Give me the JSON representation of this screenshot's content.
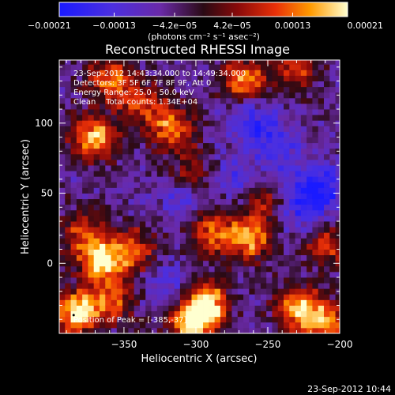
{
  "chart_data": {
    "type": "heatmap",
    "title": "Reconstructed RHESSI Image",
    "xlabel": "Heliocentric X (arcsec)",
    "ylabel": "Heliocentric Y (arcsec)",
    "xlim": [
      -395,
      -200
    ],
    "ylim": [
      -50,
      145
    ],
    "x_ticks": [
      -350,
      -300,
      -250,
      -200
    ],
    "x_tick_labels": [
      "−350",
      "−300",
      "−250",
      "−200"
    ],
    "y_ticks": [
      0,
      50,
      100
    ],
    "y_tick_labels": [
      "0",
      "50",
      "100"
    ],
    "colorbar": {
      "min": -0.00021,
      "max": 0.00021,
      "ticks": [
        -0.00021,
        -0.00013,
        -4.2e-05,
        4.2e-05,
        0.00013,
        0.00021
      ],
      "tick_labels": [
        "−0.00021",
        "−0.00013",
        "−4.2e−05",
        "4.2e−05",
        "0.00013",
        "0.00021"
      ],
      "unit_label": "(photons cm⁻² s⁻¹ asec⁻²)"
    },
    "annotations": [
      "23-Sep-2012 14:43:34.000 to 14:49:34.000",
      "Detectors: 3F 5F 6F 7F 8F 9F, Att 0",
      "Energy Range: 25.0 - 50.0 keV",
      "Clean    Total counts: 1.34E+04",
      "Position of Peak = [-385,-37]"
    ],
    "peak_position": [
      -385,
      -37
    ],
    "grid": false,
    "legend": "none",
    "hotspots": [
      {
        "x": -372,
        "y": 88,
        "amp": 0.85
      },
      {
        "x": -362,
        "y": 130,
        "amp": 0.7
      },
      {
        "x": -340,
        "y": 112,
        "amp": 0.55
      },
      {
        "x": -318,
        "y": 95,
        "amp": 0.75
      },
      {
        "x": -268,
        "y": 128,
        "amp": 0.8
      },
      {
        "x": -232,
        "y": 138,
        "amp": 0.6
      },
      {
        "x": -305,
        "y": 60,
        "amp": 0.5
      },
      {
        "x": -380,
        "y": 20,
        "amp": 0.55
      },
      {
        "x": -368,
        "y": 0,
        "amp": 1.0
      },
      {
        "x": -345,
        "y": 8,
        "amp": 0.55
      },
      {
        "x": -290,
        "y": 20,
        "amp": 0.7
      },
      {
        "x": -265,
        "y": 15,
        "amp": 0.75
      },
      {
        "x": -255,
        "y": 40,
        "amp": 0.45
      },
      {
        "x": -385,
        "y": -37,
        "amp": 1.0
      },
      {
        "x": -360,
        "y": -28,
        "amp": 0.6
      },
      {
        "x": -295,
        "y": -30,
        "amp": 1.0
      },
      {
        "x": -305,
        "y": -45,
        "amp": 0.9
      },
      {
        "x": -230,
        "y": -35,
        "amp": 0.85
      },
      {
        "x": -210,
        "y": -45,
        "amp": 0.7
      },
      {
        "x": -210,
        "y": 10,
        "amp": 0.5
      }
    ],
    "coldspots": [
      {
        "x": -262,
        "y": 100,
        "amp": 0.9
      },
      {
        "x": -215,
        "y": 52,
        "amp": 1.0
      },
      {
        "x": -230,
        "y": 40,
        "amp": 0.8
      },
      {
        "x": -310,
        "y": 48,
        "amp": 0.75
      },
      {
        "x": -275,
        "y": 60,
        "amp": 0.55
      },
      {
        "x": -320,
        "y": -20,
        "amp": 0.6
      },
      {
        "x": -245,
        "y": 80,
        "amp": 0.6
      }
    ]
  },
  "footer": {
    "timestamp": "23-Sep-2012 10:44"
  }
}
